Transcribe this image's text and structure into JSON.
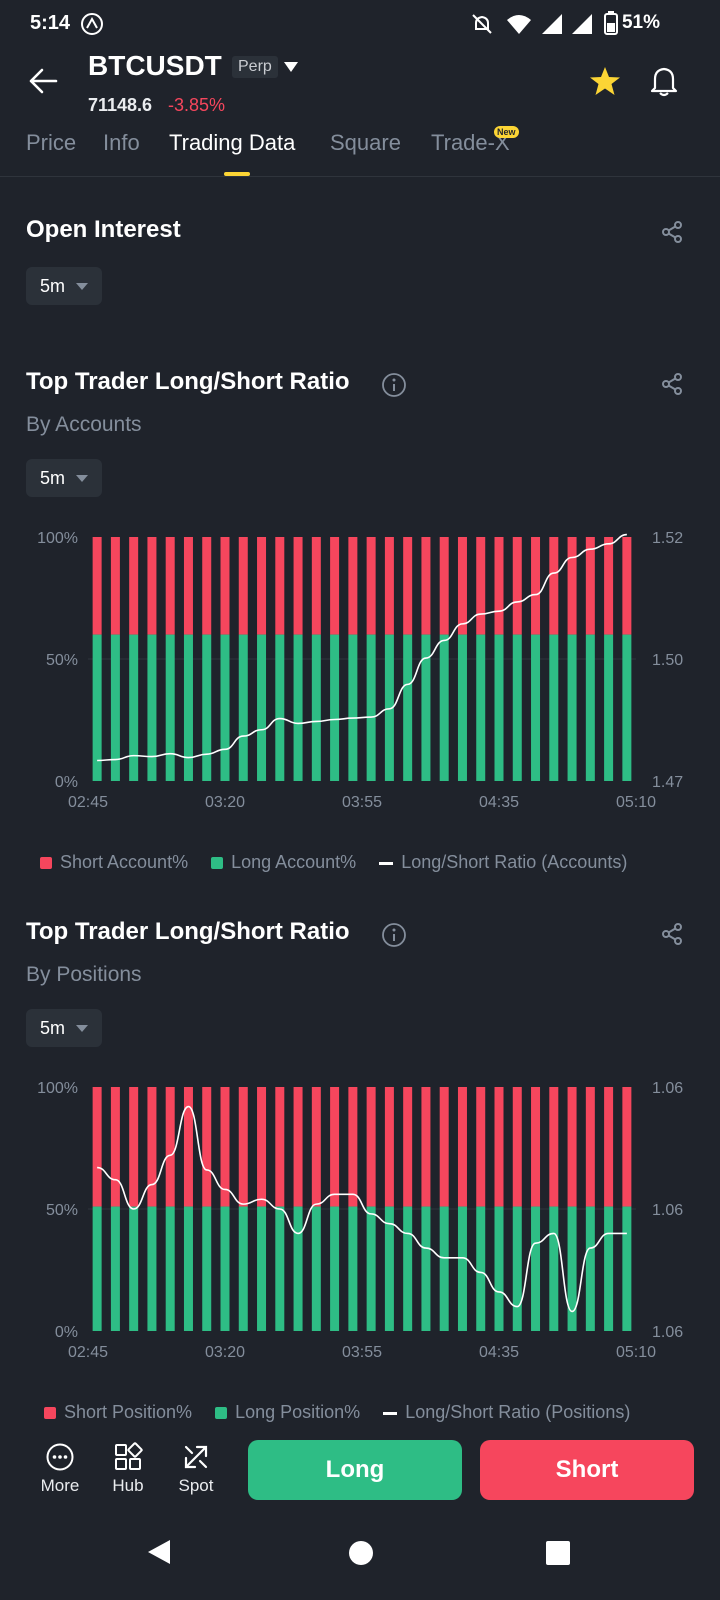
{
  "status": {
    "time": "5:14",
    "battery": "51%"
  },
  "header": {
    "symbol": "BTCUSDT",
    "contract_type": "Perp",
    "price": "71148.6",
    "change": "-3.85%"
  },
  "tabs": [
    {
      "label": "Price"
    },
    {
      "label": "Info"
    },
    {
      "label": "Trading Data"
    },
    {
      "label": "Square"
    },
    {
      "label": "Trade-X"
    }
  ],
  "new_badge": "New",
  "open_interest": {
    "title": "Open Interest",
    "interval": "5m"
  },
  "accounts": {
    "title": "Top Trader Long/Short Ratio",
    "subtitle": "By Accounts",
    "interval": "5m",
    "legend": {
      "short": "Short Account%",
      "long": "Long Account%",
      "ratio": "Long/Short Ratio (Accounts)"
    }
  },
  "positions": {
    "title": "Top Trader Long/Short Ratio",
    "subtitle": "By Positions",
    "interval": "5m",
    "legend": {
      "short": "Short Position%",
      "long": "Long Position%",
      "ratio": "Long/Short Ratio (Positions)"
    }
  },
  "bottom_nav": {
    "more": "More",
    "hub": "Hub",
    "spot": "Spot",
    "long": "Long",
    "short": "Short"
  },
  "colors": {
    "short": "#f6465d",
    "long": "#2ebd85",
    "accent": "#fcd535"
  },
  "chart_data": [
    {
      "type": "bar",
      "title": "Top Trader Long/Short Ratio (By Accounts)",
      "x_ticks": [
        "02:45",
        "03:20",
        "03:55",
        "04:35",
        "05:10"
      ],
      "y_left_ticks": [
        "100%",
        "50%",
        "0%"
      ],
      "y_right_ticks": [
        "1.52",
        "1.50",
        "1.47"
      ],
      "bar_count": 30,
      "long_pct": 60,
      "series": [
        {
          "name": "Short Account%",
          "value_pct": 40
        },
        {
          "name": "Long Account%",
          "value_pct": 60
        },
        {
          "name": "Long/Short Ratio (Accounts)",
          "ylim": [
            1.47,
            1.52
          ],
          "values": [
            1.4742,
            1.4744,
            1.4752,
            1.475,
            1.4756,
            1.4748,
            1.4755,
            1.4765,
            1.4792,
            1.4805,
            1.4828,
            1.4818,
            1.4822,
            1.4826,
            1.4829,
            1.4831,
            1.4848,
            1.4898,
            1.4952,
            1.4988,
            1.5022,
            1.5042,
            1.5048,
            1.5067,
            1.5082,
            1.5126,
            1.5158,
            1.5175,
            1.5186,
            1.5205
          ]
        }
      ]
    },
    {
      "type": "bar",
      "title": "Top Trader Long/Short Ratio (By Positions)",
      "x_ticks": [
        "02:45",
        "03:20",
        "03:55",
        "04:35",
        "05:10"
      ],
      "y_left_ticks": [
        "100%",
        "50%",
        "0%"
      ],
      "y_right_ticks": [
        "1.06",
        "1.06",
        "1.06"
      ],
      "bar_count": 30,
      "long_pct": 51,
      "series": [
        {
          "name": "Short Position%",
          "value_pct": 49
        },
        {
          "name": "Long Position%",
          "value_pct": 51
        },
        {
          "name": "Long/Short Ratio (Positions)",
          "ylim": [
            0,
            100
          ],
          "values": [
            67,
            62,
            50,
            60,
            72,
            92,
            66,
            58,
            52,
            54,
            50,
            40,
            52,
            56,
            56,
            48,
            44,
            40,
            34,
            30,
            30,
            24,
            16,
            10,
            36,
            40,
            8,
            34,
            40,
            40
          ]
        }
      ]
    }
  ]
}
